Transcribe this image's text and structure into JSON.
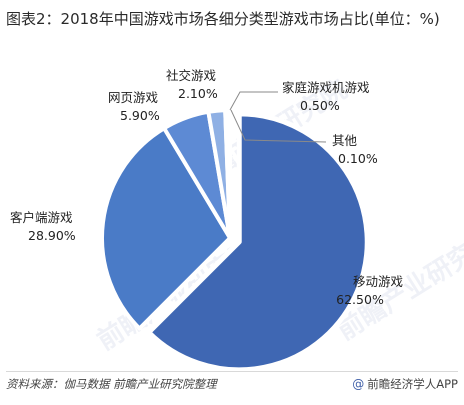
{
  "title": "图表2：2018年中国游戏市场各细分类型游戏市场占比(单位：%)",
  "watermark": "前瞻产业研究院",
  "footer": {
    "source": "资料来源：伽马数据 前瞻产业研究院整理",
    "brand": "前瞻经济学人APP",
    "brand_icon": "at-icon"
  },
  "colors": {
    "primary": "#3f67b3",
    "secondary": "#4a7bc7",
    "light": "#6d9ae0",
    "lighter": "#9fbbe8",
    "pale": "#c8d7f0"
  },
  "chart_data": {
    "type": "pie",
    "title": "图表2：2018年中国游戏市场各细分类型游戏市场占比(单位：%)",
    "unit": "%",
    "slices": [
      {
        "name": "移动游戏",
        "value": 62.5,
        "label": "62.50%",
        "color": "#3f67b3",
        "exploded": true
      },
      {
        "name": "客户端游戏",
        "value": 28.9,
        "label": "28.90%",
        "color": "#4a7bc7",
        "exploded": false
      },
      {
        "name": "网页游戏",
        "value": 5.9,
        "label": "5.90%",
        "color": "#5d8ad4",
        "exploded": false
      },
      {
        "name": "社交游戏",
        "value": 2.1,
        "label": "2.10%",
        "color": "#8fb0e4",
        "exploded": false
      },
      {
        "name": "家庭游戏机游戏",
        "value": 0.5,
        "label": "0.50%",
        "color": "#b6caef",
        "exploded": false
      },
      {
        "name": "其他",
        "value": 0.1,
        "label": "0.10%",
        "color": "#d6e2f7",
        "exploded": false
      }
    ]
  }
}
